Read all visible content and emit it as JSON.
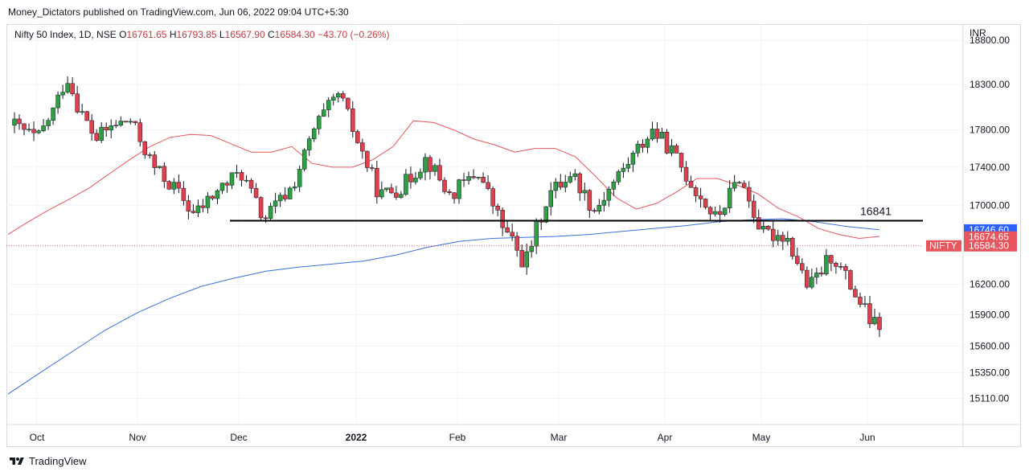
{
  "publish_line": "Money_Dictators published on TradingView.com, Jun 06, 2022 09:04 UTC+5:30",
  "brand": "TradingView",
  "legend": {
    "symbol": "Nifty 50 Index, 1D, NSE",
    "o_label": "O",
    "o": "16761.65",
    "h_label": "H",
    "h": "16793.85",
    "l_label": "L",
    "l": "16567.90",
    "c_label": "C",
    "c": "16584.30",
    "change": "−43.70 (−0.26%)"
  },
  "currency": "INR",
  "colors": {
    "up": "#2ea043",
    "down": "#e0404b",
    "ema_short": "#e8555c",
    "ema_long": "#3a6fe0",
    "level_line": "#000000",
    "last_price": "#e8555c",
    "label_blue": "#2962ff"
  },
  "chart_data": {
    "type": "candlestick",
    "y_axis_ticks": [
      "18800.00",
      "18300.00",
      "17800.00",
      "17400.00",
      "17000.00",
      "16200.00",
      "15900.00",
      "15600.00",
      "15350.00",
      "15110.00"
    ],
    "x_axis_labels": [
      "Oct",
      "Nov",
      "Dec",
      "2022",
      "Feb",
      "Mar",
      "Apr",
      "May",
      "Jun"
    ],
    "ylim": [
      14900,
      18950
    ],
    "scale": "log",
    "horizontal_level": {
      "value": 16841,
      "label": "16841"
    },
    "price_labels": [
      {
        "name": "",
        "value": "16746.60",
        "color": "#2962ff"
      },
      {
        "name": "",
        "value": "16674.65",
        "color": "#e8555c"
      },
      {
        "name": "NIFTY",
        "value": "16584.30",
        "color": "#e8555c"
      }
    ],
    "series": [
      {
        "name": "",
        "type": "ma",
        "values": [
          16700,
          16830,
          16950,
          17060,
          17180,
          17330,
          17480,
          17620,
          17720,
          17750,
          17740,
          17650,
          17560,
          17560,
          17620,
          17440,
          17400,
          17400,
          17480,
          17620,
          17900,
          17880,
          17800,
          17700,
          17640,
          17560,
          17600,
          17600,
          17510,
          17300,
          17080,
          16960,
          17020,
          17140,
          17280,
          17280,
          17210,
          17120,
          16970,
          16880,
          16760,
          16700,
          16660,
          16680
        ]
      },
      {
        "name": "",
        "type": "ma",
        "values": [
          15150,
          15350,
          15550,
          15750,
          15920,
          16060,
          16180,
          16260,
          16330,
          16370,
          16400,
          16430,
          16490,
          16570,
          16630,
          16660,
          16670,
          16680,
          16700,
          16730,
          16760,
          16790,
          16830,
          16850,
          16860,
          16830,
          16780,
          16748
        ]
      }
    ]
  }
}
